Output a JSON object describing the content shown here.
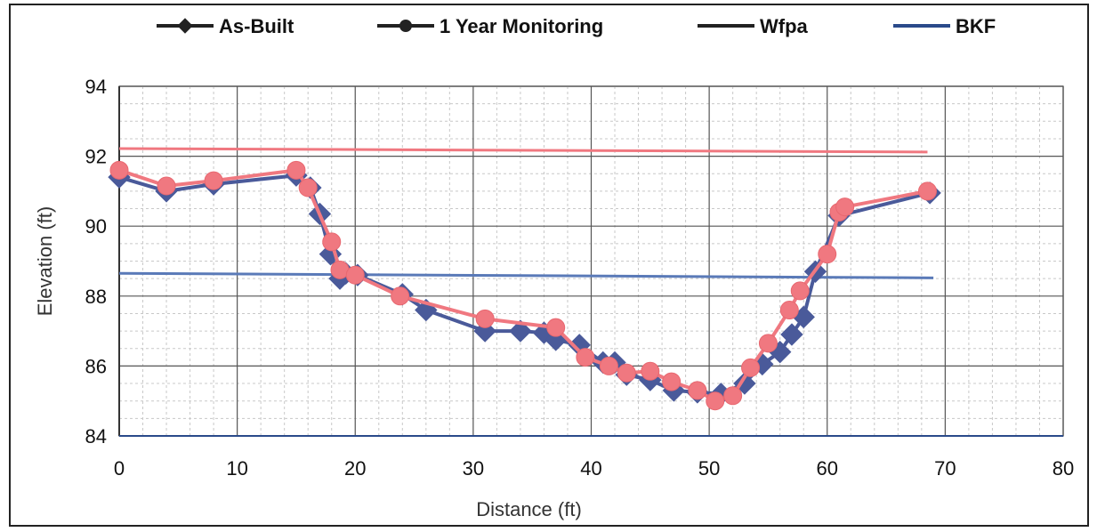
{
  "chart_data": {
    "type": "line",
    "title": "",
    "xlabel": "Distance  (ft)",
    "ylabel": "Elevation (ft)",
    "xlim": [
      0,
      80
    ],
    "ylim": [
      84,
      94
    ],
    "xticks": [
      0,
      10,
      20,
      30,
      40,
      50,
      60,
      70,
      80
    ],
    "yticks": [
      84,
      86,
      88,
      90,
      92,
      94
    ],
    "grid": true,
    "legend_position": "top",
    "series": [
      {
        "name": "As-Built",
        "marker": "diamond",
        "line_color": "#222222",
        "plot_color": "#4a5a9a",
        "x": [
          0,
          4,
          8,
          15,
          16.2,
          17,
          17.9,
          18.7,
          19.2,
          20.2,
          24,
          26,
          31,
          34,
          36,
          37,
          39,
          41,
          42,
          43,
          45,
          47,
          49,
          51,
          53,
          54.5,
          56,
          57,
          58,
          59,
          61,
          68.7
        ],
        "y": [
          91.4,
          91.0,
          91.2,
          91.45,
          91.1,
          90.35,
          89.2,
          88.5,
          88.65,
          88.6,
          88.05,
          87.6,
          87.0,
          87.0,
          86.95,
          86.75,
          86.6,
          86.1,
          86.1,
          85.75,
          85.6,
          85.3,
          85.25,
          85.2,
          85.5,
          86.05,
          86.4,
          86.9,
          87.4,
          88.7,
          90.3,
          90.95
        ]
      },
      {
        "name": "1 Year Monitoring",
        "marker": "circle",
        "line_color": "#222222",
        "plot_color": "#f07880",
        "x": [
          0,
          4,
          8,
          15,
          16,
          18,
          18.7,
          20,
          23.8,
          31,
          37,
          39.5,
          41.5,
          43,
          45,
          46.8,
          49,
          50.5,
          52,
          53.5,
          55,
          56.8,
          57.7,
          60,
          61,
          61.5,
          68.5
        ],
        "y": [
          91.6,
          91.15,
          91.3,
          91.6,
          91.1,
          89.55,
          88.75,
          88.6,
          88.0,
          87.35,
          87.1,
          86.25,
          86.0,
          85.8,
          85.85,
          85.55,
          85.3,
          85.0,
          85.15,
          85.95,
          86.65,
          87.6,
          88.15,
          89.2,
          90.4,
          90.55,
          91.0
        ]
      },
      {
        "name": "Wfpa",
        "marker": "none",
        "line_color": "#222222",
        "plot_color": "#f07880",
        "x": [
          0,
          68.5
        ],
        "y": [
          92.22,
          92.12
        ]
      },
      {
        "name": "BKF",
        "marker": "none",
        "line_color": "#2a4a8a",
        "plot_color": "#5a7ab8",
        "x": [
          0,
          69
        ],
        "y": [
          88.65,
          88.52
        ]
      }
    ]
  }
}
